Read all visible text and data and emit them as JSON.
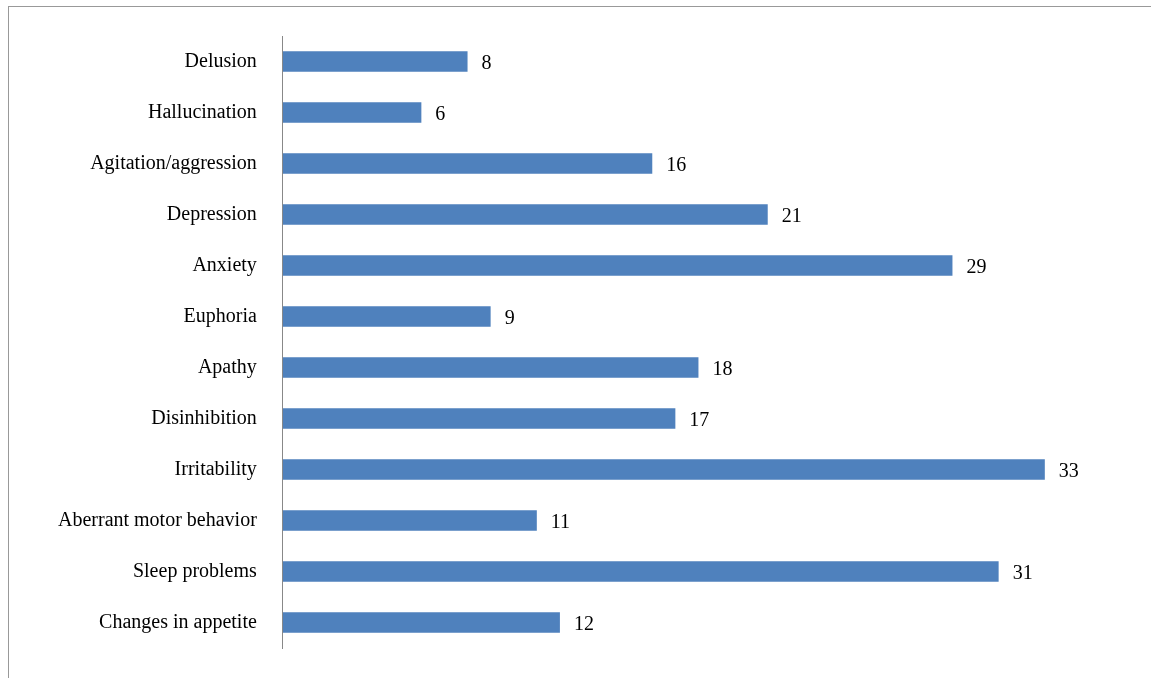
{
  "chart_data": {
    "type": "bar",
    "orientation": "horizontal",
    "categories": [
      "Delusion",
      "Hallucination",
      "Agitation/aggression",
      "Depression",
      "Anxiety",
      "Euphoria",
      "Apathy",
      "Disinhibition",
      "Irritability",
      "Aberrant motor behavior",
      "Sleep problems",
      "Changes in appetite"
    ],
    "values": [
      8,
      6,
      16,
      21,
      29,
      9,
      18,
      17,
      33,
      11,
      31,
      12
    ],
    "color": "#4f81bd",
    "data_labels": true,
    "legend": false
  }
}
